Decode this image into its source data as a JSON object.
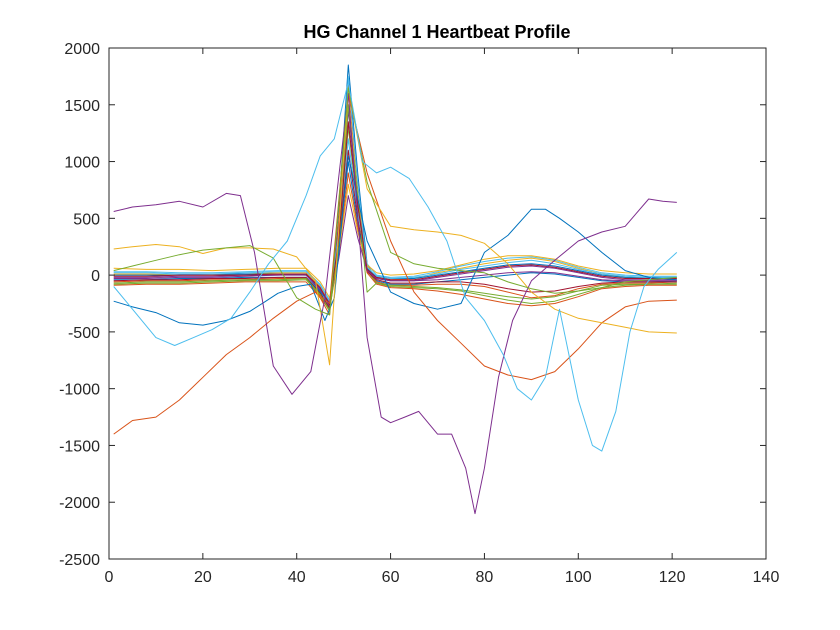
{
  "chart_data": {
    "type": "line",
    "title": "HG Channel 1 Heartbeat Profile",
    "xlabel": "",
    "ylabel": "",
    "xlim": [
      0,
      140
    ],
    "ylim": [
      -2500,
      2000
    ],
    "xticks": [
      0,
      20,
      40,
      60,
      80,
      100,
      120,
      140
    ],
    "yticks": [
      2000,
      1500,
      1000,
      500,
      0,
      -500,
      -1000,
      -1500,
      -2000,
      -2500
    ],
    "xtick_labels": [
      "0",
      "20",
      "40",
      "60",
      "80",
      "100",
      "120",
      "140"
    ],
    "ytick_labels": [
      "2000",
      "1500",
      "1000",
      "500",
      "0",
      "-500",
      "-1000",
      "-1500",
      "-2000",
      "-2500"
    ],
    "grid": false,
    "legend": "none",
    "colors": [
      "#0072BD",
      "#D95319",
      "#EDB120",
      "#7E2F8E",
      "#77AC30",
      "#4DBEEE",
      "#A2142F"
    ],
    "series": [
      {
        "x": [
          1,
          8,
          15,
          22,
          29,
          36,
          42,
          45,
          47,
          49,
          51,
          53,
          55,
          57,
          60,
          65,
          70,
          75,
          80,
          85,
          90,
          95,
          100,
          105,
          110,
          115,
          121
        ],
        "y": [
          -40,
          -40,
          -30,
          -30,
          -20,
          -20,
          -20,
          -150,
          -300,
          600,
          1850,
          900,
          100,
          -50,
          -80,
          -80,
          -60,
          -40,
          -20,
          0,
          20,
          10,
          -20,
          -50,
          -60,
          -60,
          -50
        ]
      },
      {
        "x": [
          1,
          8,
          15,
          22,
          29,
          36,
          42,
          45,
          47,
          49,
          51,
          53,
          55,
          57,
          60,
          65,
          70,
          75,
          80,
          85,
          90,
          95,
          100,
          105,
          110,
          115,
          121
        ],
        "y": [
          -60,
          -50,
          -50,
          -40,
          -40,
          -30,
          -30,
          -200,
          -350,
          500,
          1700,
          800,
          50,
          -60,
          -90,
          -90,
          -80,
          -80,
          -100,
          -150,
          -200,
          -180,
          -120,
          -80,
          -70,
          -70,
          -60
        ]
      },
      {
        "x": [
          1,
          8,
          15,
          22,
          29,
          36,
          42,
          45,
          47,
          49,
          51,
          53,
          55,
          57,
          60,
          65,
          70,
          75,
          80,
          85,
          90,
          95,
          100,
          105,
          110,
          115,
          121
        ],
        "y": [
          10,
          10,
          0,
          0,
          10,
          20,
          20,
          -100,
          -250,
          400,
          1600,
          700,
          80,
          -20,
          -40,
          -30,
          20,
          60,
          100,
          130,
          150,
          120,
          60,
          10,
          -20,
          -30,
          -30
        ]
      },
      {
        "x": [
          1,
          8,
          15,
          22,
          29,
          36,
          42,
          45,
          47,
          49,
          51,
          53,
          55,
          57,
          60,
          65,
          70,
          75,
          80,
          85,
          90,
          95,
          100,
          105,
          110,
          115,
          121
        ],
        "y": [
          -20,
          -20,
          -10,
          -10,
          0,
          0,
          10,
          -120,
          -280,
          450,
          1450,
          650,
          60,
          -30,
          -50,
          -50,
          -20,
          10,
          40,
          70,
          80,
          60,
          20,
          -20,
          -40,
          -40,
          -40
        ]
      },
      {
        "x": [
          1,
          8,
          15,
          22,
          29,
          36,
          42,
          45,
          47,
          49,
          51,
          53,
          55,
          57,
          60,
          65,
          70,
          75,
          80,
          85,
          90,
          95,
          100,
          105,
          110,
          115,
          121
        ],
        "y": [
          -80,
          -70,
          -70,
          -60,
          -50,
          -50,
          -40,
          -180,
          -320,
          350,
          1300,
          600,
          40,
          -70,
          -100,
          -110,
          -120,
          -140,
          -180,
          -220,
          -250,
          -230,
          -170,
          -110,
          -90,
          -80,
          -80
        ]
      },
      {
        "x": [
          1,
          8,
          15,
          22,
          29,
          36,
          42,
          45,
          47,
          49,
          51,
          53,
          55,
          57,
          60,
          65,
          70,
          75,
          80,
          85,
          90,
          95,
          100,
          105,
          110,
          115,
          121
        ],
        "y": [
          30,
          30,
          20,
          20,
          30,
          40,
          40,
          -80,
          -220,
          300,
          1200,
          550,
          100,
          0,
          -20,
          -10,
          30,
          80,
          120,
          150,
          160,
          130,
          70,
          20,
          0,
          -10,
          -10
        ]
      },
      {
        "x": [
          1,
          8,
          15,
          22,
          29,
          36,
          42,
          45,
          47,
          49,
          51,
          53,
          55,
          57,
          60,
          65,
          70,
          75,
          80,
          85,
          90,
          95,
          100,
          105,
          110,
          115,
          121
        ],
        "y": [
          -50,
          -40,
          -40,
          -30,
          -30,
          -20,
          -20,
          -160,
          -290,
          280,
          1100,
          500,
          30,
          -40,
          -70,
          -70,
          -60,
          -60,
          -80,
          -120,
          -150,
          -140,
          -100,
          -70,
          -60,
          -60,
          -60
        ]
      },
      {
        "x": [
          1,
          8,
          15,
          22,
          29,
          36,
          42,
          45,
          47,
          49,
          51,
          53,
          55,
          57,
          60,
          65,
          70,
          75,
          80,
          85,
          90,
          95,
          100,
          105,
          110,
          115,
          121
        ],
        "y": [
          0,
          0,
          0,
          10,
          10,
          10,
          0,
          -140,
          -260,
          250,
          1000,
          450,
          60,
          -10,
          -30,
          -30,
          0,
          30,
          60,
          90,
          100,
          80,
          40,
          0,
          -20,
          -20,
          -20
        ]
      },
      {
        "x": [
          1,
          8,
          15,
          22,
          29,
          36,
          42,
          45,
          47,
          49,
          51,
          53,
          55,
          57,
          60,
          65,
          70,
          75,
          80,
          85,
          90,
          95,
          100,
          105,
          110,
          115,
          121
        ],
        "y": [
          -90,
          -80,
          -80,
          -70,
          -60,
          -60,
          -60,
          -200,
          -300,
          200,
          900,
          420,
          20,
          -80,
          -110,
          -120,
          -140,
          -170,
          -210,
          -250,
          -270,
          -250,
          -190,
          -120,
          -100,
          -90,
          -90
        ]
      },
      {
        "x": [
          1,
          8,
          15,
          22,
          29,
          36,
          42,
          45,
          47,
          49,
          51,
          53,
          55,
          57,
          60,
          65,
          70,
          75,
          80,
          85,
          90,
          95,
          100,
          105,
          110,
          115,
          121
        ],
        "y": [
          60,
          50,
          50,
          40,
          50,
          60,
          60,
          -60,
          -200,
          200,
          800,
          380,
          90,
          20,
          0,
          10,
          40,
          90,
          140,
          170,
          170,
          140,
          80,
          40,
          20,
          10,
          10
        ]
      },
      {
        "x": [
          1,
          8,
          15,
          22,
          29,
          36,
          42,
          45,
          47,
          49,
          51,
          53,
          55,
          57,
          60,
          65,
          70,
          75,
          80,
          85,
          90,
          95,
          100,
          105,
          110,
          115,
          121
        ],
        "y": [
          -30,
          -30,
          -20,
          -20,
          -10,
          0,
          0,
          -130,
          -240,
          150,
          700,
          330,
          40,
          -30,
          -50,
          -50,
          -40,
          -20,
          0,
          20,
          30,
          20,
          -10,
          -40,
          -50,
          -50,
          -50
        ]
      },
      {
        "x": [
          1,
          8,
          15,
          22,
          29,
          36,
          42,
          45,
          47,
          49,
          51,
          53,
          55,
          57,
          60,
          65,
          70,
          75,
          80,
          85,
          90,
          95,
          100,
          105,
          110,
          115,
          121
        ],
        "y": [
          -70,
          -60,
          -60,
          -50,
          -40,
          -40,
          -30,
          -170,
          -310,
          250,
          1500,
          700,
          -150,
          -70,
          -90,
          -100,
          -110,
          -130,
          -160,
          -190,
          -210,
          -190,
          -140,
          -90,
          -80,
          -80,
          -70
        ]
      },
      {
        "x": [
          1,
          8,
          15,
          22,
          29,
          36,
          42,
          45,
          47,
          49,
          51,
          53,
          55,
          57,
          60,
          65,
          70,
          75,
          80,
          85,
          90,
          95,
          100,
          105,
          110,
          115,
          121
        ],
        "y": [
          20,
          20,
          10,
          10,
          20,
          30,
          30,
          -90,
          -230,
          380,
          1750,
          820,
          70,
          -10,
          -30,
          -20,
          10,
          50,
          80,
          110,
          130,
          100,
          50,
          10,
          -10,
          -20,
          -20
        ]
      },
      {
        "x": [
          1,
          8,
          15,
          22,
          29,
          36,
          42,
          45,
          47,
          49,
          51,
          53,
          55,
          57,
          60,
          65,
          70,
          75,
          80,
          85,
          90,
          95,
          100,
          105,
          110,
          115,
          121
        ],
        "y": [
          -10,
          -10,
          0,
          0,
          0,
          10,
          10,
          -110,
          -260,
          330,
          1350,
          620,
          50,
          -20,
          -40,
          -40,
          -10,
          20,
          50,
          80,
          90,
          70,
          30,
          -10,
          -30,
          -30,
          -30
        ]
      },
      {
        "x": [
          1,
          5,
          10,
          15,
          20,
          25,
          30,
          33,
          36,
          40,
          43,
          46,
          48,
          51,
          55,
          60,
          65,
          70,
          75,
          80,
          85,
          90,
          93,
          96,
          100,
          105,
          110,
          115,
          121
        ],
        "y": [
          -230,
          -280,
          -330,
          -420,
          -440,
          -400,
          -320,
          -240,
          -160,
          -100,
          -80,
          -400,
          -200,
          1050,
          300,
          -150,
          -250,
          -300,
          -250,
          200,
          350,
          580,
          580,
          500,
          380,
          200,
          40,
          -20,
          -40
        ]
      },
      {
        "x": [
          1,
          5,
          10,
          15,
          20,
          25,
          30,
          35,
          40,
          44,
          47,
          51,
          55,
          60,
          65,
          70,
          75,
          80,
          85,
          90,
          95,
          100,
          105,
          110,
          115,
          121
        ],
        "y": [
          -1400,
          -1280,
          -1250,
          -1100,
          -900,
          -700,
          -550,
          -380,
          -230,
          -150,
          -250,
          1600,
          900,
          300,
          -150,
          -400,
          -600,
          -800,
          -880,
          -920,
          -850,
          -650,
          -420,
          -280,
          -230,
          -220
        ]
      },
      {
        "x": [
          1,
          5,
          10,
          15,
          20,
          25,
          30,
          35,
          40,
          44,
          47,
          51,
          55,
          60,
          65,
          70,
          75,
          80,
          85,
          90,
          95,
          100,
          105,
          110,
          115,
          121
        ],
        "y": [
          230,
          250,
          270,
          250,
          190,
          240,
          240,
          230,
          160,
          -50,
          -790,
          1650,
          760,
          430,
          400,
          380,
          350,
          280,
          100,
          -150,
          -300,
          -380,
          -420,
          -460,
          -500,
          -510
        ]
      },
      {
        "x": [
          1,
          5,
          10,
          15,
          20,
          25,
          28,
          31,
          35,
          39,
          43,
          46,
          51,
          55,
          58,
          60,
          63,
          66,
          70,
          73,
          76,
          78,
          80,
          83,
          86,
          90,
          95,
          100,
          105,
          110,
          115,
          118,
          121
        ],
        "y": [
          560,
          600,
          620,
          650,
          600,
          720,
          700,
          200,
          -800,
          -1050,
          -850,
          -200,
          1600,
          -550,
          -1250,
          -1300,
          -1250,
          -1200,
          -1400,
          -1400,
          -1700,
          -2100,
          -1700,
          -900,
          -400,
          -50,
          130,
          300,
          380,
          430,
          670,
          650,
          640
        ]
      },
      {
        "x": [
          1,
          5,
          10,
          15,
          20,
          25,
          30,
          35,
          40,
          44,
          47,
          51,
          55,
          60,
          65,
          70,
          75,
          80,
          85,
          90,
          95,
          100,
          105,
          110,
          115,
          121
        ],
        "y": [
          40,
          80,
          130,
          180,
          220,
          240,
          260,
          150,
          -200,
          -300,
          -350,
          1650,
          820,
          200,
          100,
          60,
          40,
          20,
          -60,
          -120,
          -160,
          -140,
          -110,
          -60,
          -40,
          -20
        ]
      },
      {
        "x": [
          1,
          5,
          10,
          14,
          18,
          22,
          26,
          30,
          34,
          38,
          42,
          45,
          48,
          51,
          54,
          57,
          60,
          64,
          68,
          72,
          76,
          80,
          84,
          87,
          90,
          93,
          96,
          100,
          103,
          105,
          108,
          111,
          114,
          117,
          121
        ],
        "y": [
          -100,
          -300,
          -550,
          -620,
          -550,
          -480,
          -380,
          -150,
          100,
          300,
          700,
          1050,
          1200,
          1700,
          1000,
          900,
          950,
          850,
          600,
          300,
          -200,
          -400,
          -700,
          -1000,
          -1100,
          -900,
          -300,
          -1100,
          -1500,
          -1550,
          -1200,
          -500,
          -100,
          50,
          200
        ]
      }
    ]
  }
}
